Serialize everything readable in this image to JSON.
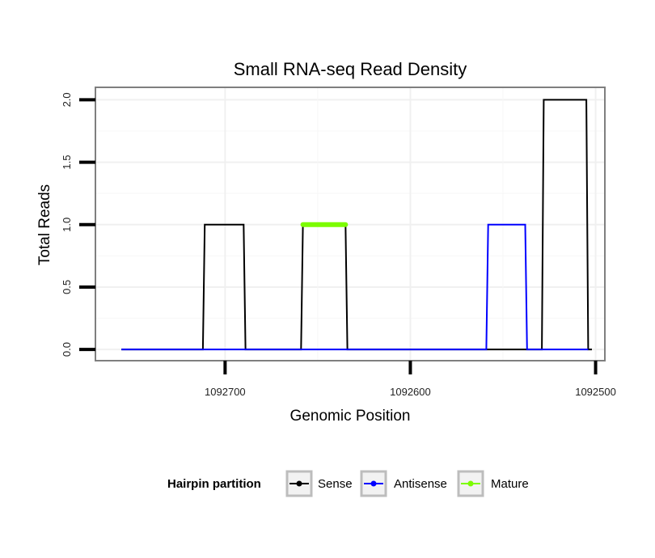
{
  "chart_data": {
    "type": "line",
    "title": "Small RNA-seq Read Density",
    "xlabel": "Genomic Position",
    "ylabel": "Total Reads",
    "xlim": [
      1092770,
      1092495
    ],
    "ylim": [
      -0.09,
      2.1
    ],
    "x_reversed": true,
    "grid": true,
    "xticks": [
      1092700,
      1092600,
      1092500
    ],
    "xtick_labels": [
      "1092700",
      "1092600",
      "1092500"
    ],
    "yticks": [
      0.0,
      0.5,
      1.0,
      1.5,
      2.0
    ],
    "ytick_labels": [
      "0.0",
      "0.5",
      "1.0",
      "1.5",
      "2.0"
    ],
    "legend": {
      "title": "Hairpin partition",
      "position": "bottom",
      "entries": [
        {
          "label": "Sense",
          "color": "#000000"
        },
        {
          "label": "Antisense",
          "color": "#0000ff"
        },
        {
          "label": "Mature",
          "color": "#7cfc00"
        }
      ]
    },
    "series": [
      {
        "name": "Sense",
        "color": "#000000",
        "x": [
          1092756,
          1092712,
          1092711,
          1092690,
          1092689,
          1092659,
          1092658,
          1092635,
          1092634,
          1092551,
          1092550,
          1092529,
          1092528,
          1092505,
          1092504,
          1092502
        ],
        "y": [
          0,
          0,
          1,
          1,
          0,
          0,
          1,
          1,
          0,
          0,
          0,
          0,
          2,
          2,
          0,
          0
        ]
      },
      {
        "name": "Antisense",
        "color": "#0000ff",
        "x": [
          1092756,
          1092559,
          1092558,
          1092538,
          1092537,
          1092504
        ],
        "y": [
          0,
          0,
          1,
          1,
          0,
          0
        ]
      },
      {
        "name": "Mature",
        "color": "#7cfc00",
        "x": [
          1092658,
          1092635
        ],
        "y": [
          1,
          1
        ]
      }
    ]
  }
}
